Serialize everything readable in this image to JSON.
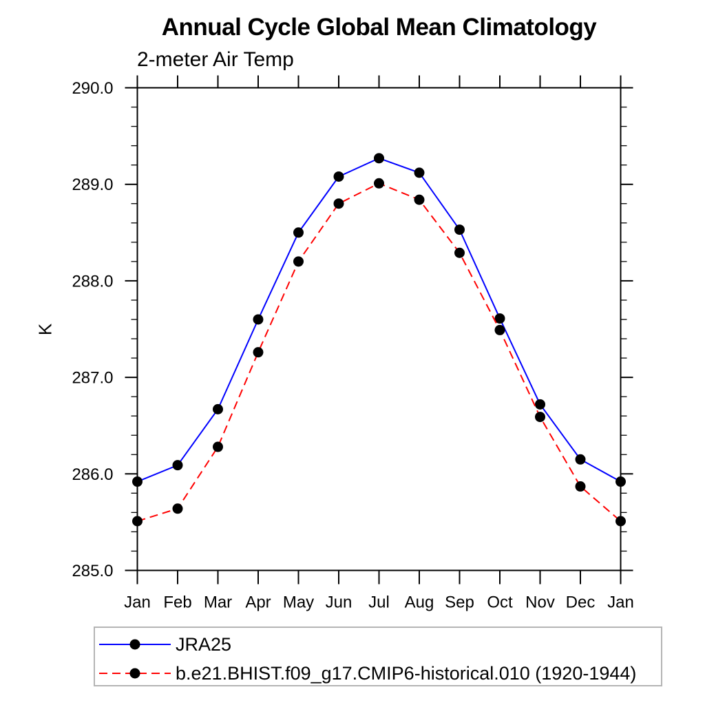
{
  "chart_data": {
    "type": "line",
    "title": "Annual Cycle Global Mean Climatology",
    "subtitle": "2-meter Air Temp",
    "ylabel": "K",
    "xlabel": "",
    "categories": [
      "Jan",
      "Feb",
      "Mar",
      "Apr",
      "May",
      "Jun",
      "Jul",
      "Aug",
      "Sep",
      "Oct",
      "Nov",
      "Dec",
      "Jan"
    ],
    "series": [
      {
        "name": "JRA25",
        "color": "#0000ff",
        "line_style": "solid",
        "marker": "filled-circle",
        "marker_color": "#000000",
        "values": [
          285.92,
          286.09,
          286.67,
          287.6,
          288.5,
          289.08,
          289.27,
          289.12,
          288.53,
          287.61,
          286.72,
          286.15,
          285.92
        ]
      },
      {
        "name": "b.e21.BHIST.f09_g17.CMIP6-historical.010 (1920-1944)",
        "color": "#ff0000",
        "line_style": "dashed",
        "marker": "filled-circle",
        "marker_color": "#000000",
        "values": [
          285.51,
          285.64,
          286.28,
          287.26,
          288.2,
          288.8,
          289.01,
          288.84,
          288.29,
          287.49,
          286.59,
          285.87,
          285.51
        ]
      }
    ],
    "ylim": [
      285.0,
      290.0
    ],
    "y_major_step": 1.0,
    "y_minor_step": 0.2,
    "y_tick_labels": [
      "285.0",
      "286.0",
      "287.0",
      "288.0",
      "289.0",
      "290.0"
    ],
    "grid": false,
    "axes_frame": "box-with-outward-ticks",
    "legend_position": "bottom-left",
    "colors": {
      "axis": "#000000",
      "text": "#000000",
      "legend_border": "#b4b4b4",
      "background": "#ffffff"
    }
  }
}
